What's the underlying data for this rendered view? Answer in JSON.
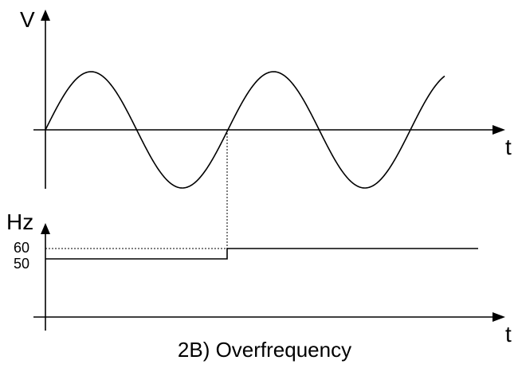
{
  "voltage_panel": {
    "y_axis_label": "V",
    "x_axis_label": "t"
  },
  "frequency_panel": {
    "y_axis_label": "Hz",
    "x_axis_label": "t",
    "tick_labels": [
      "60",
      "50"
    ]
  },
  "caption": "2B) Overfrequency",
  "colors": {
    "line": "#000000",
    "background": "#ffffff"
  }
}
